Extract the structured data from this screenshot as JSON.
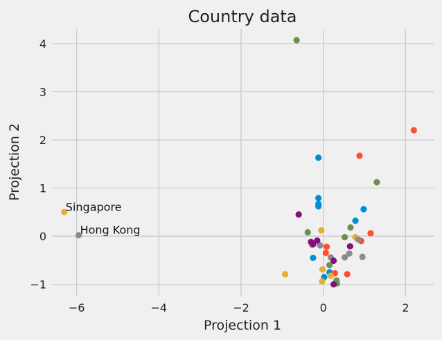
{
  "chart_data": {
    "type": "scatter",
    "title": "Country data",
    "xlabel": "Projection 1",
    "ylabel": "Projection 2",
    "xlim": [
      -6.6,
      2.7
    ],
    "ylim": [
      -1.25,
      4.3
    ],
    "xticks": [
      -6,
      -4,
      -2,
      0,
      2
    ],
    "yticks": [
      -1,
      0,
      1,
      2,
      3,
      4
    ],
    "xtick_labels": [
      "−6",
      "−4",
      "−2",
      "0",
      "2"
    ],
    "ytick_labels": [
      "−1",
      "0",
      "1",
      "2",
      "3",
      "4"
    ],
    "grid": true,
    "colors": {
      "background": "#f0f0f0",
      "grid": "#cbcbcb",
      "palette": [
        "#008fd5",
        "#fc4f30",
        "#e5ae38",
        "#6d904f",
        "#8b8b8b",
        "#810f7c"
      ]
    },
    "points": [
      {
        "x": -0.12,
        "y": 1.63,
        "c": 0
      },
      {
        "x": -0.12,
        "y": 0.79,
        "c": 0
      },
      {
        "x": -0.12,
        "y": 0.67,
        "c": 0
      },
      {
        "x": -0.12,
        "y": 0.62,
        "c": 0
      },
      {
        "x": 0.98,
        "y": 0.56,
        "c": 0
      },
      {
        "x": 0.78,
        "y": 0.32,
        "c": 0
      },
      {
        "x": -0.25,
        "y": -0.45,
        "c": 0
      },
      {
        "x": 0.02,
        "y": -0.85,
        "c": 0
      },
      {
        "x": 0.15,
        "y": -0.75,
        "c": 0
      },
      {
        "x": 2.2,
        "y": 2.2,
        "c": 1
      },
      {
        "x": 0.88,
        "y": 1.67,
        "c": 1
      },
      {
        "x": 1.15,
        "y": 0.06,
        "c": 1
      },
      {
        "x": 0.08,
        "y": -0.22,
        "c": 1
      },
      {
        "x": 0.06,
        "y": -0.35,
        "c": 1
      },
      {
        "x": 0.92,
        "y": -0.1,
        "c": 1
      },
      {
        "x": 0.28,
        "y": -0.77,
        "c": 1
      },
      {
        "x": 0.58,
        "y": -0.79,
        "c": 1
      },
      {
        "x": -6.3,
        "y": 0.5,
        "c": 2
      },
      {
        "x": -0.05,
        "y": 0.12,
        "c": 2
      },
      {
        "x": -0.28,
        "y": -0.18,
        "c": 2
      },
      {
        "x": -0.02,
        "y": -0.69,
        "c": 2
      },
      {
        "x": 0.18,
        "y": -0.82,
        "c": 2
      },
      {
        "x": -0.03,
        "y": -0.94,
        "c": 2
      },
      {
        "x": -0.93,
        "y": -0.79,
        "c": 2
      },
      {
        "x": 0.78,
        "y": -0.02,
        "c": 2
      },
      {
        "x": -0.65,
        "y": 4.07,
        "c": 3
      },
      {
        "x": 1.3,
        "y": 1.12,
        "c": 3
      },
      {
        "x": 0.66,
        "y": 0.18,
        "c": 3
      },
      {
        "x": -0.38,
        "y": 0.08,
        "c": 3
      },
      {
        "x": 0.52,
        "y": -0.02,
        "c": 3
      },
      {
        "x": 0.15,
        "y": -0.6,
        "c": 3
      },
      {
        "x": 0.32,
        "y": -0.92,
        "c": 3
      },
      {
        "x": 0.33,
        "y": -0.98,
        "c": 3
      },
      {
        "x": -5.95,
        "y": 0.02,
        "c": 4
      },
      {
        "x": -0.08,
        "y": -0.19,
        "c": 4
      },
      {
        "x": 0.18,
        "y": -0.44,
        "c": 4
      },
      {
        "x": 0.52,
        "y": -0.44,
        "c": 4
      },
      {
        "x": 0.63,
        "y": -0.36,
        "c": 4
      },
      {
        "x": 0.95,
        "y": -0.43,
        "c": 4
      },
      {
        "x": 0.85,
        "y": -0.07,
        "c": 4
      },
      {
        "x": -0.6,
        "y": 0.45,
        "c": 5
      },
      {
        "x": -0.3,
        "y": -0.12,
        "c": 5
      },
      {
        "x": -0.25,
        "y": -0.17,
        "c": 5
      },
      {
        "x": -0.15,
        "y": -0.09,
        "c": 5
      },
      {
        "x": 0.25,
        "y": -0.51,
        "c": 5
      },
      {
        "x": 0.65,
        "y": -0.21,
        "c": 5
      },
      {
        "x": 0.25,
        "y": -1.0,
        "c": 5
      }
    ],
    "annotations": [
      {
        "text": "Singapore",
        "x": -6.3,
        "y": 0.5
      },
      {
        "text": "Hong Kong",
        "x": -5.95,
        "y": 0.02
      }
    ]
  }
}
